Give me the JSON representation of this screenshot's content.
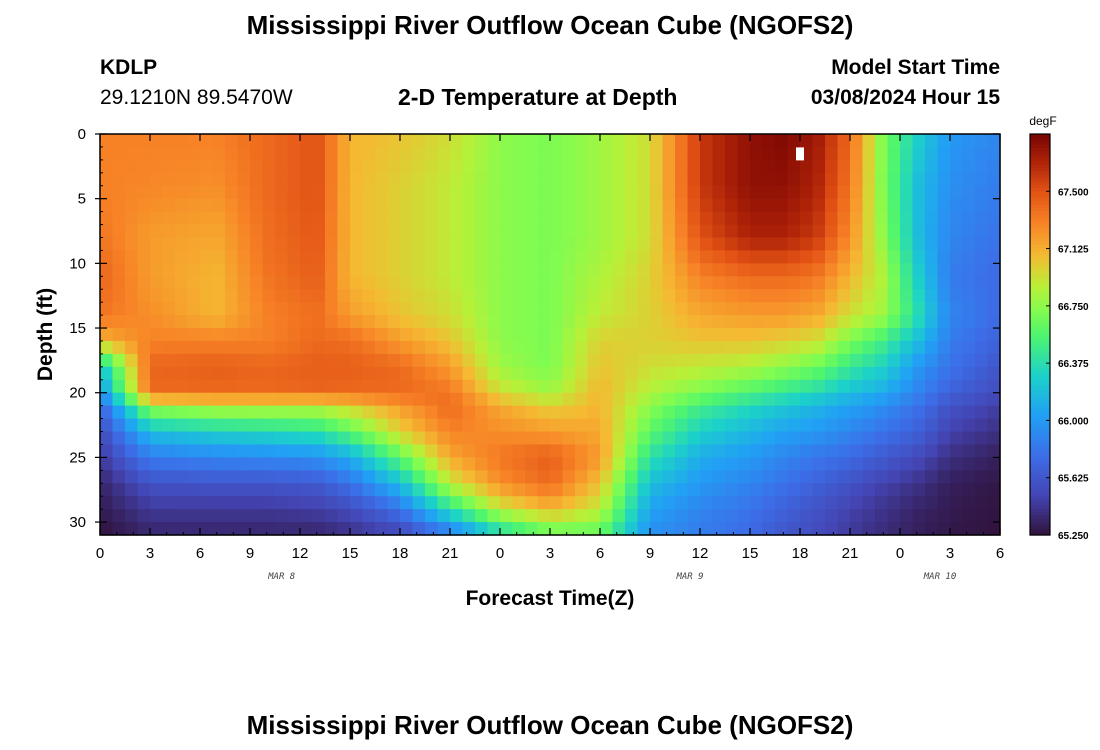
{
  "header": {
    "title": "Mississippi River Outflow Ocean Cube (NGOFS2)",
    "station": "KDLP",
    "coords": "29.1210N  89.5470W",
    "subtitle": "2-D Temperature at Depth",
    "model_start_label": "Model Start Time",
    "model_start_value": "03/08/2024 Hour 15"
  },
  "footer": {
    "title": "Mississippi River Outflow Ocean Cube (NGOFS2)"
  },
  "chart_data": {
    "type": "heatmap",
    "title": "2-D Temperature at Depth",
    "xlabel": "Forecast Time(Z)",
    "ylabel": "Depth (ft)",
    "x_range_hours": [
      0,
      54
    ],
    "y_range_ft": [
      0,
      31
    ],
    "x_tick_labels": [
      "0",
      "3",
      "6",
      "9",
      "12",
      "15",
      "18",
      "21",
      "0",
      "3",
      "6",
      "9",
      "12",
      "15",
      "18",
      "21",
      "0",
      "3",
      "6"
    ],
    "y_tick_values": [
      0,
      5,
      10,
      15,
      20,
      25,
      30
    ],
    "date_labels": [
      {
        "label": "MAR 8",
        "hour": 11.5
      },
      {
        "label": "MAR 9",
        "hour": 36
      },
      {
        "label": "MAR 10",
        "hour": 51
      }
    ],
    "colorbar": {
      "unit": "degF",
      "min": 65.25,
      "max": 67.875,
      "tick_labels": [
        "65.250",
        "65.625",
        "66.000",
        "66.375",
        "66.750",
        "67.125",
        "67.500"
      ],
      "tick_values": [
        65.25,
        65.625,
        66.0,
        66.375,
        66.75,
        67.125,
        67.5
      ]
    },
    "profile_hours": [
      0,
      3,
      7,
      10,
      13,
      15,
      18,
      21,
      24,
      27,
      30,
      33,
      36,
      39,
      41,
      43,
      45,
      47,
      49,
      51,
      54
    ],
    "depth_levels_ft": [
      0,
      4,
      8,
      11,
      14,
      16,
      18,
      20,
      21,
      23,
      25,
      27,
      29,
      31
    ],
    "temperature_degF": [
      [
        67.3,
        67.3,
        67.35,
        67.42,
        67.35,
        67.1,
        66.2,
        65.95,
        65.7,
        65.55,
        65.45,
        65.35,
        65.3,
        65.25
      ],
      [
        67.3,
        67.28,
        67.2,
        67.2,
        67.25,
        67.3,
        67.42,
        67.4,
        66.8,
        66.2,
        65.85,
        65.6,
        65.45,
        65.35
      ],
      [
        67.3,
        67.25,
        67.15,
        67.1,
        67.1,
        67.3,
        67.45,
        67.4,
        66.9,
        66.3,
        65.9,
        65.62,
        65.45,
        65.35
      ],
      [
        67.4,
        67.4,
        67.38,
        67.35,
        67.3,
        67.3,
        67.42,
        67.4,
        66.9,
        66.35,
        65.92,
        65.62,
        65.45,
        65.35
      ],
      [
        67.5,
        67.5,
        67.48,
        67.45,
        67.38,
        67.4,
        67.45,
        67.42,
        66.9,
        66.4,
        65.95,
        65.65,
        65.48,
        65.35
      ],
      [
        67.1,
        67.1,
        67.1,
        67.1,
        67.2,
        67.38,
        67.45,
        67.4,
        67.0,
        66.6,
        66.1,
        65.8,
        65.55,
        65.4
      ],
      [
        67.05,
        67.0,
        67.0,
        67.0,
        67.05,
        67.2,
        67.4,
        67.4,
        67.2,
        67.0,
        66.6,
        66.2,
        65.8,
        65.5
      ],
      [
        66.95,
        66.9,
        66.9,
        66.9,
        66.95,
        67.05,
        67.2,
        67.35,
        67.4,
        67.3,
        67.15,
        66.9,
        66.4,
        65.8
      ],
      [
        66.75,
        66.75,
        66.75,
        66.75,
        66.75,
        66.75,
        66.8,
        66.95,
        67.15,
        67.25,
        67.35,
        67.25,
        66.9,
        66.3
      ],
      [
        66.7,
        66.7,
        66.7,
        66.7,
        66.7,
        66.7,
        66.7,
        66.8,
        67.0,
        67.2,
        67.45,
        67.4,
        67.1,
        66.6
      ],
      [
        66.8,
        66.8,
        66.8,
        66.85,
        66.9,
        67.0,
        67.05,
        67.1,
        67.1,
        67.15,
        67.2,
        67.05,
        66.9,
        66.6
      ],
      [
        66.95,
        66.95,
        66.95,
        67.0,
        67.0,
        67.0,
        66.95,
        66.85,
        66.75,
        66.6,
        66.4,
        66.2,
        66.05,
        65.95
      ],
      [
        67.6,
        67.6,
        67.5,
        67.3,
        67.15,
        67.05,
        66.9,
        66.7,
        66.5,
        66.3,
        66.1,
        66.0,
        65.9,
        65.85
      ],
      [
        67.8,
        67.8,
        67.7,
        67.4,
        67.2,
        67.05,
        66.85,
        66.55,
        66.35,
        66.15,
        66.0,
        65.9,
        65.8,
        65.75
      ],
      [
        67.85,
        67.8,
        67.7,
        67.4,
        67.2,
        67.0,
        66.75,
        66.45,
        66.25,
        66.05,
        65.9,
        65.8,
        65.7,
        65.62
      ],
      [
        67.75,
        67.7,
        67.6,
        67.35,
        67.15,
        66.95,
        66.65,
        66.35,
        66.15,
        66.0,
        65.82,
        65.7,
        65.6,
        65.55
      ],
      [
        67.4,
        67.35,
        67.25,
        67.1,
        66.95,
        66.7,
        66.45,
        66.2,
        66.05,
        65.9,
        65.75,
        65.6,
        65.5,
        65.45
      ],
      [
        66.7,
        66.7,
        66.75,
        66.85,
        66.8,
        66.5,
        66.3,
        66.1,
        65.95,
        65.8,
        65.65,
        65.5,
        65.42,
        65.38
      ],
      [
        66.3,
        66.2,
        66.2,
        66.3,
        66.4,
        66.2,
        66.0,
        65.9,
        65.8,
        65.7,
        65.55,
        65.42,
        65.35,
        65.32
      ],
      [
        66.0,
        65.95,
        65.9,
        65.85,
        65.9,
        65.85,
        65.8,
        65.7,
        65.6,
        65.5,
        65.4,
        65.32,
        65.3,
        65.28
      ],
      [
        65.9,
        65.85,
        65.8,
        65.75,
        65.75,
        65.7,
        65.62,
        65.55,
        65.48,
        65.4,
        65.32,
        65.28,
        65.26,
        65.25
      ]
    ]
  }
}
